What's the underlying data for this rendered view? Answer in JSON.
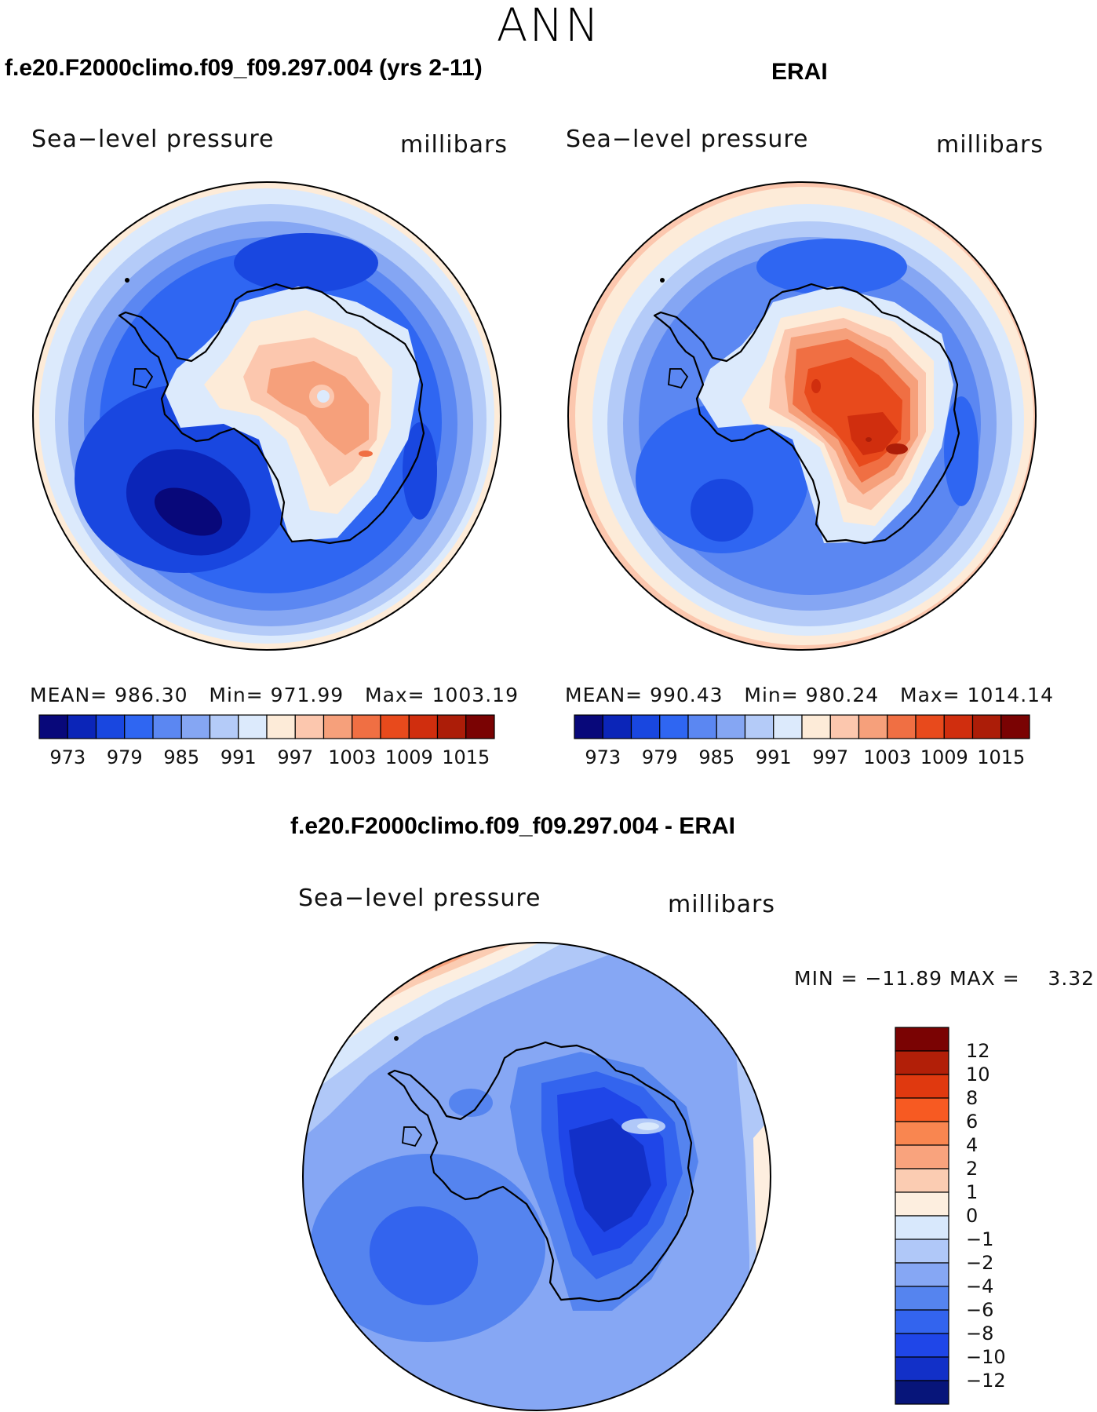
{
  "season": "ANN",
  "panels": [
    {
      "id": "model",
      "title": "f.e20.F2000climo.f09_f09.297.004 (yrs 2-11)",
      "variable": "Sea−level pressure",
      "units": "millibars",
      "mean_label": "MEAN=",
      "mean": "986.30",
      "min_label": "Min=",
      "min": "971.99",
      "max_label": "Max=",
      "max": "1003.19"
    },
    {
      "id": "obs",
      "title": "ERAI",
      "variable": "Sea−level pressure",
      "units": "millibars",
      "mean_label": "MEAN=",
      "mean": "990.43",
      "min_label": "Min=",
      "min": "980.24",
      "max_label": "Max=",
      "max": "1014.14"
    },
    {
      "id": "diff",
      "title": "f.e20.F2000climo.f09_f09.297.004 - ERAI",
      "variable": "Sea−level pressure",
      "units": "millibars",
      "minmax_text": "MIN = −11.89 MAX =    3.32"
    }
  ],
  "chart_data": [
    {
      "type": "heatmap",
      "projection": "south-polar-stereographic",
      "title": "f.e20.F2000climo.f09_f09.297.004 (yrs 2-11)",
      "field": "Sea-level pressure",
      "units": "millibars",
      "mean": 986.3,
      "min": 971.99,
      "max": 1003.19
    },
    {
      "type": "heatmap",
      "projection": "south-polar-stereographic",
      "title": "ERAI",
      "field": "Sea-level pressure",
      "units": "millibars",
      "mean": 990.43,
      "min": 980.24,
      "max": 1014.14
    },
    {
      "type": "heatmap",
      "projection": "south-polar-stereographic",
      "title": "f.e20.F2000climo.f09_f09.297.004 - ERAI",
      "field": "Sea-level pressure difference",
      "units": "millibars",
      "min": -11.89,
      "max": 3.32
    }
  ],
  "colorbar_abs": {
    "colors": [
      "#08087a",
      "#0b25b8",
      "#1947e0",
      "#2f66f2",
      "#5b87f2",
      "#85a6f3",
      "#b4cbf8",
      "#dceafc",
      "#fdebd8",
      "#fcc7ae",
      "#f6a07b",
      "#f06f43",
      "#e84a1c",
      "#d02e0e",
      "#ac1d08",
      "#7a0303"
    ],
    "labels": [
      "973",
      "979",
      "985",
      "991",
      "997",
      "1003",
      "1009",
      "1015"
    ]
  },
  "colorbar_diff": {
    "colors": [
      "#7a0303",
      "#b21f08",
      "#e0390f",
      "#f75a22",
      "#f98650",
      "#f9a37d",
      "#fbccb2",
      "#fdeedf",
      "#d8e8fc",
      "#b0c8f8",
      "#86a7f4",
      "#5584ef",
      "#3364ee",
      "#1f46e8",
      "#1230c8",
      "#07157a"
    ],
    "labels": [
      "12",
      "10",
      "8",
      "6",
      "4",
      "2",
      "1",
      "0",
      "−1",
      "−2",
      "−4",
      "−6",
      "−8",
      "−10",
      "−12"
    ]
  }
}
